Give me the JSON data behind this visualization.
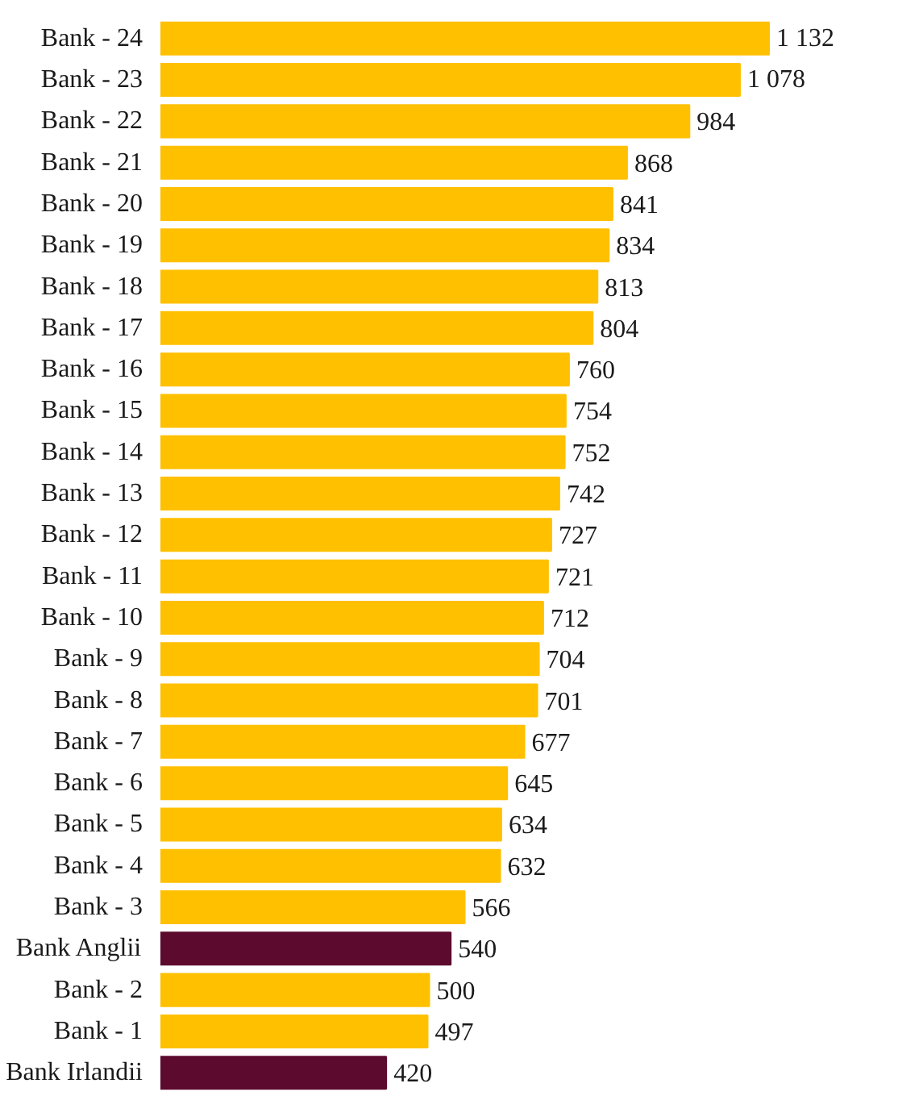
{
  "chart_data": {
    "type": "bar",
    "orientation": "horizontal",
    "categories": [
      "Bank - 24",
      "Bank - 23",
      "Bank - 22",
      "Bank - 21",
      "Bank - 20",
      "Bank - 19",
      "Bank - 18",
      "Bank - 17",
      "Bank - 16",
      "Bank - 15",
      "Bank - 14",
      "Bank - 13",
      "Bank - 12",
      "Bank - 11",
      "Bank - 10",
      "Bank - 9",
      "Bank - 8",
      "Bank - 7",
      "Bank - 6",
      "Bank - 5",
      "Bank - 4",
      "Bank - 3",
      "Bank Anglii",
      "Bank - 2",
      "Bank - 1",
      "Bank Irlandii"
    ],
    "values": [
      1132,
      1078,
      984,
      868,
      841,
      834,
      813,
      804,
      760,
      754,
      752,
      742,
      727,
      721,
      712,
      704,
      701,
      677,
      645,
      634,
      632,
      566,
      540,
      500,
      497,
      420
    ],
    "value_labels": [
      "1 132",
      "1 078",
      "984",
      "868",
      "841",
      "834",
      "813",
      "804",
      "760",
      "754",
      "752",
      "742",
      "727",
      "721",
      "712",
      "704",
      "701",
      "677",
      "645",
      "634",
      "632",
      "566",
      "540",
      "500",
      "497",
      "420"
    ],
    "colors": [
      "#ffc000",
      "#ffc000",
      "#ffc000",
      "#ffc000",
      "#ffc000",
      "#ffc000",
      "#ffc000",
      "#ffc000",
      "#ffc000",
      "#ffc000",
      "#ffc000",
      "#ffc000",
      "#ffc000",
      "#ffc000",
      "#ffc000",
      "#ffc000",
      "#ffc000",
      "#ffc000",
      "#ffc000",
      "#ffc000",
      "#ffc000",
      "#ffc000",
      "#5c0a2e",
      "#ffc000",
      "#ffc000",
      "#5c0a2e"
    ],
    "data_labels": true
  }
}
